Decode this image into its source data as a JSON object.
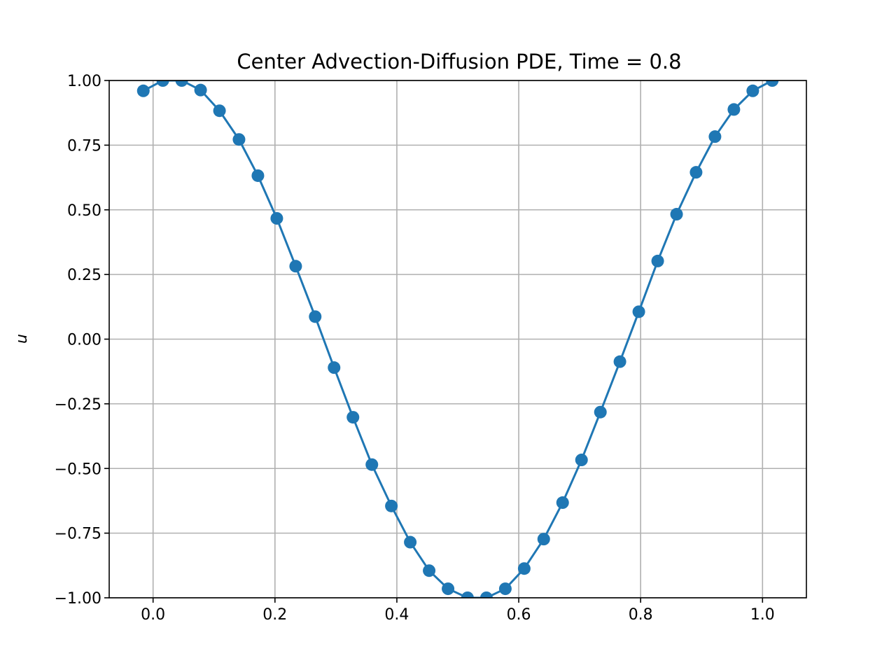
{
  "chart_data": {
    "type": "line",
    "title": "Center Advection-Diffusion PDE, Time = 0.8",
    "xlabel": "",
    "ylabel": "u",
    "xlim": [
      -0.072,
      1.072
    ],
    "ylim": [
      -1.0,
      1.0
    ],
    "grid": true,
    "xticks": [
      0.0,
      0.2,
      0.4,
      0.6,
      0.8,
      1.0
    ],
    "xtick_labels": [
      "0.0",
      "0.2",
      "0.4",
      "0.6",
      "0.8",
      "1.0"
    ],
    "yticks": [
      1.0,
      0.75,
      0.5,
      0.25,
      0.0,
      -0.25,
      -0.5,
      -0.75,
      -1.0
    ],
    "ytick_labels": [
      "1.00",
      "0.75",
      "0.50",
      "0.25",
      "0.00",
      "−0.25",
      "−0.50",
      "−0.75",
      "−1.00"
    ],
    "series": [
      {
        "color": "#1f77b4",
        "marker": "circle",
        "x": [
          -0.016,
          0.016,
          0.047,
          0.078,
          0.109,
          0.141,
          0.172,
          0.203,
          0.234,
          0.266,
          0.297,
          0.328,
          0.359,
          0.391,
          0.422,
          0.453,
          0.484,
          0.516,
          0.547,
          0.578,
          0.609,
          0.641,
          0.672,
          0.703,
          0.734,
          0.766,
          0.797,
          0.828,
          0.859,
          0.891,
          0.922,
          0.953,
          0.984,
          1.016
        ],
        "y": [
          0.96,
          1.0,
          1.0,
          0.963,
          0.883,
          0.772,
          0.632,
          0.467,
          0.282,
          0.087,
          -0.11,
          -0.302,
          -0.485,
          -0.645,
          -0.785,
          -0.895,
          -0.965,
          -1.0,
          -1.0,
          -0.965,
          -0.887,
          -0.773,
          -0.632,
          -0.467,
          -0.282,
          -0.087,
          0.106,
          0.302,
          0.483,
          0.645,
          0.783,
          0.888,
          0.96,
          1.0
        ]
      }
    ]
  }
}
